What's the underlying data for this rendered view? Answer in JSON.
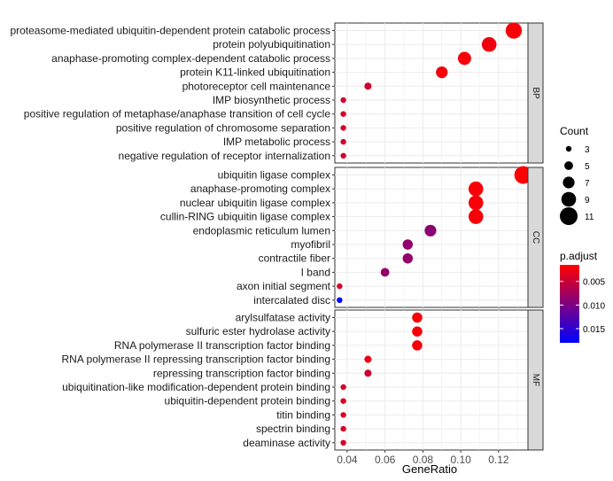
{
  "colors": {
    "low": "#FF0000",
    "high": "#0000FF",
    "strip_fill": "#D9D9D9",
    "grid": "#EBEBEB"
  },
  "chart_data": {
    "type": "scatter",
    "xlabel": "GeneRatio",
    "xlim": [
      0.0335,
      0.1355
    ],
    "x_ticks": [
      0.04,
      0.06,
      0.08,
      0.1,
      0.12
    ],
    "x_tick_labels": [
      "0.04",
      "0.06",
      "0.08",
      "0.10",
      "0.12"
    ],
    "size_legend": {
      "title": "Count",
      "values": [
        3,
        5,
        7,
        9,
        11
      ]
    },
    "color_legend": {
      "title": "p.adjust",
      "range": [
        0.0015,
        0.018
      ],
      "ticks": [
        0.005,
        0.01,
        0.015
      ],
      "tick_labels": [
        "0.005",
        "0.010",
        "0.015"
      ]
    },
    "facets": [
      {
        "name": "BP",
        "terms": [
          {
            "label": "proteasome-mediated ubiquitin-dependent protein catabolic process",
            "x": 0.128,
            "count": 10,
            "p_adjust": 0.002
          },
          {
            "label": "protein polyubiquitination",
            "x": 0.115,
            "count": 9,
            "p_adjust": 0.0025
          },
          {
            "label": "anaphase-promoting complex-dependent catabolic process",
            "x": 0.102,
            "count": 8,
            "p_adjust": 0.002
          },
          {
            "label": "protein K11-linked ubiquitination",
            "x": 0.09,
            "count": 7,
            "p_adjust": 0.002
          },
          {
            "label": "photoreceptor cell maintenance",
            "x": 0.051,
            "count": 4,
            "p_adjust": 0.0045
          },
          {
            "label": "IMP biosynthetic process",
            "x": 0.038,
            "count": 3,
            "p_adjust": 0.0045
          },
          {
            "label": "positive regulation of metaphase/anaphase transition of cell cycle",
            "x": 0.038,
            "count": 3,
            "p_adjust": 0.0045
          },
          {
            "label": "positive regulation of chromosome separation",
            "x": 0.038,
            "count": 3,
            "p_adjust": 0.0045
          },
          {
            "label": "IMP metabolic process",
            "x": 0.038,
            "count": 3,
            "p_adjust": 0.0045
          },
          {
            "label": "negative regulation of receptor internalization",
            "x": 0.038,
            "count": 3,
            "p_adjust": 0.0045
          }
        ]
      },
      {
        "name": "CC",
        "terms": [
          {
            "label": "ubiquitin ligase complex",
            "x": 0.133,
            "count": 11,
            "p_adjust": 0.0015
          },
          {
            "label": "anaphase-promoting complex",
            "x": 0.108,
            "count": 9,
            "p_adjust": 0.002
          },
          {
            "label": "nuclear ubiquitin ligase complex",
            "x": 0.108,
            "count": 9,
            "p_adjust": 0.002
          },
          {
            "label": "cullin-RING ubiquitin ligase complex",
            "x": 0.108,
            "count": 9,
            "p_adjust": 0.002
          },
          {
            "label": "endoplasmic reticulum lumen",
            "x": 0.084,
            "count": 7,
            "p_adjust": 0.009
          },
          {
            "label": "myofibril",
            "x": 0.072,
            "count": 6,
            "p_adjust": 0.0085
          },
          {
            "label": "contractile fiber",
            "x": 0.072,
            "count": 6,
            "p_adjust": 0.0085
          },
          {
            "label": "I band",
            "x": 0.06,
            "count": 5,
            "p_adjust": 0.0085
          },
          {
            "label": "axon initial segment",
            "x": 0.036,
            "count": 3,
            "p_adjust": 0.004
          },
          {
            "label": "intercalated disc",
            "x": 0.036,
            "count": 3,
            "p_adjust": 0.018
          }
        ]
      },
      {
        "name": "MF",
        "terms": [
          {
            "label": "arylsulfatase activity",
            "x": 0.077,
            "count": 6,
            "p_adjust": 0.002
          },
          {
            "label": "sulfuric ester hydrolase activity",
            "x": 0.077,
            "count": 6,
            "p_adjust": 0.002
          },
          {
            "label": "RNA polymerase II transcription factor binding",
            "x": 0.077,
            "count": 6,
            "p_adjust": 0.002
          },
          {
            "label": "RNA polymerase II repressing transcription factor binding",
            "x": 0.051,
            "count": 4,
            "p_adjust": 0.003
          },
          {
            "label": "repressing transcription factor binding",
            "x": 0.051,
            "count": 4,
            "p_adjust": 0.0045
          },
          {
            "label": "ubiquitination-like modification-dependent protein binding",
            "x": 0.038,
            "count": 3,
            "p_adjust": 0.004
          },
          {
            "label": "ubiquitin-dependent protein binding",
            "x": 0.038,
            "count": 3,
            "p_adjust": 0.004
          },
          {
            "label": "titin binding",
            "x": 0.038,
            "count": 3,
            "p_adjust": 0.004
          },
          {
            "label": "spectrin binding",
            "x": 0.038,
            "count": 3,
            "p_adjust": 0.004
          },
          {
            "label": "deaminase activity",
            "x": 0.038,
            "count": 3,
            "p_adjust": 0.004
          }
        ]
      }
    ]
  }
}
